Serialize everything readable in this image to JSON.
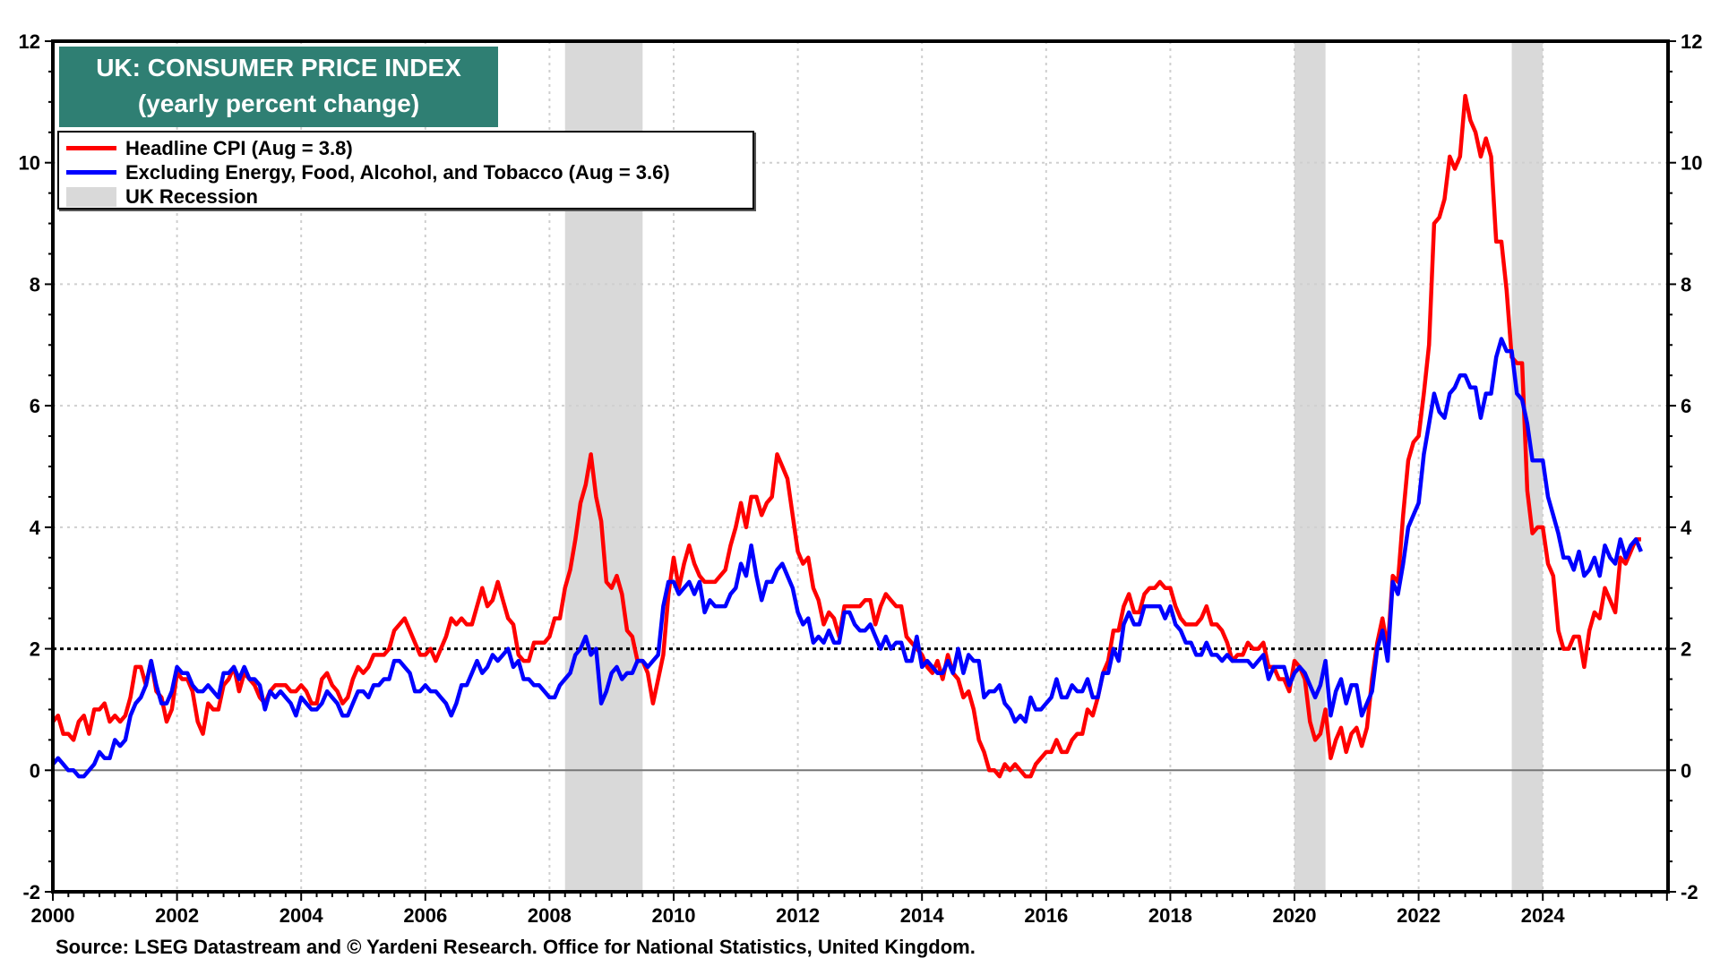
{
  "chart_data": {
    "type": "line",
    "title": "UK: CONSUMER PRICE INDEX",
    "subtitle": "(yearly percent change)",
    "xlabel": "",
    "ylabel": "",
    "x_start": "2000-01",
    "x_frequency": "monthly",
    "xlim": [
      2000,
      2026.2
    ],
    "ylim": [
      -2,
      12
    ],
    "y_ticks": [
      -2,
      0,
      2,
      4,
      6,
      8,
      10,
      12
    ],
    "y_tick_labels": [
      "-2",
      "0",
      "2",
      "4",
      "6",
      "8",
      "10",
      "12"
    ],
    "x_ticks": [
      2000,
      2002,
      2004,
      2006,
      2008,
      2010,
      2012,
      2014,
      2016,
      2018,
      2020,
      2022,
      2024
    ],
    "x_tick_labels": [
      "2000",
      "2002",
      "2004",
      "2006",
      "2008",
      "2010",
      "2012",
      "2014",
      "2016",
      "2018",
      "2020",
      "2022",
      "2024"
    ],
    "reference_lines": [
      {
        "y": 2,
        "style": "dotted",
        "color": "#000000"
      },
      {
        "y": 0,
        "style": "solid",
        "color": "#777777"
      }
    ],
    "grid": true,
    "legend_position": "top-left",
    "recessions": [
      {
        "start": 2008.25,
        "end": 2009.5
      },
      {
        "start": 2020.0,
        "end": 2020.5
      },
      {
        "start": 2023.5,
        "end": 2024.0
      }
    ],
    "series": [
      {
        "name": "Headline CPI (Aug = 3.8)",
        "color": "#ff0000",
        "values": [
          0.8,
          0.9,
          0.6,
          0.6,
          0.5,
          0.8,
          0.9,
          0.6,
          1.0,
          1.0,
          1.1,
          0.8,
          0.9,
          0.8,
          0.9,
          1.2,
          1.7,
          1.7,
          1.4,
          1.8,
          1.3,
          1.2,
          0.8,
          1.0,
          1.6,
          1.5,
          1.5,
          1.3,
          0.8,
          0.6,
          1.1,
          1.0,
          1.0,
          1.4,
          1.5,
          1.7,
          1.3,
          1.6,
          1.5,
          1.4,
          1.2,
          1.1,
          1.3,
          1.4,
          1.4,
          1.4,
          1.3,
          1.3,
          1.4,
          1.3,
          1.1,
          1.1,
          1.5,
          1.6,
          1.4,
          1.3,
          1.1,
          1.2,
          1.5,
          1.7,
          1.6,
          1.7,
          1.9,
          1.9,
          1.9,
          2.0,
          2.3,
          2.4,
          2.5,
          2.3,
          2.1,
          1.9,
          1.9,
          2.0,
          1.8,
          2.0,
          2.2,
          2.5,
          2.4,
          2.5,
          2.4,
          2.4,
          2.7,
          3.0,
          2.7,
          2.8,
          3.1,
          2.8,
          2.5,
          2.4,
          1.9,
          1.8,
          1.8,
          2.1,
          2.1,
          2.1,
          2.2,
          2.5,
          2.5,
          3.0,
          3.3,
          3.8,
          4.4,
          4.7,
          5.2,
          4.5,
          4.1,
          3.1,
          3.0,
          3.2,
          2.9,
          2.3,
          2.2,
          1.8,
          1.8,
          1.6,
          1.1,
          1.5,
          1.9,
          2.9,
          3.5,
          3.0,
          3.4,
          3.7,
          3.4,
          3.2,
          3.1,
          3.1,
          3.1,
          3.2,
          3.3,
          3.7,
          4.0,
          4.4,
          4.0,
          4.5,
          4.5,
          4.2,
          4.4,
          4.5,
          5.2,
          5.0,
          4.8,
          4.2,
          3.6,
          3.4,
          3.5,
          3.0,
          2.8,
          2.4,
          2.6,
          2.5,
          2.2,
          2.7,
          2.7,
          2.7,
          2.7,
          2.8,
          2.8,
          2.4,
          2.7,
          2.9,
          2.8,
          2.7,
          2.7,
          2.2,
          2.1,
          2.0,
          1.9,
          1.7,
          1.6,
          1.8,
          1.5,
          1.9,
          1.6,
          1.5,
          1.2,
          1.3,
          1.0,
          0.5,
          0.3,
          0.0,
          0.0,
          -0.1,
          0.1,
          0.0,
          0.1,
          0.0,
          -0.1,
          -0.1,
          0.1,
          0.2,
          0.3,
          0.3,
          0.5,
          0.3,
          0.3,
          0.5,
          0.6,
          0.6,
          1.0,
          0.9,
          1.2,
          1.6,
          1.8,
          2.3,
          2.3,
          2.7,
          2.9,
          2.6,
          2.6,
          2.9,
          3.0,
          3.0,
          3.1,
          3.0,
          3.0,
          2.7,
          2.5,
          2.4,
          2.4,
          2.4,
          2.5,
          2.7,
          2.4,
          2.4,
          2.3,
          2.1,
          1.8,
          1.9,
          1.9,
          2.1,
          2.0,
          2.0,
          2.1,
          1.7,
          1.7,
          1.5,
          1.5,
          1.3,
          1.8,
          1.7,
          1.5,
          0.8,
          0.5,
          0.6,
          1.0,
          0.2,
          0.5,
          0.7,
          0.3,
          0.6,
          0.7,
          0.4,
          0.7,
          1.5,
          2.1,
          2.5,
          2.0,
          3.2,
          3.1,
          4.2,
          5.1,
          5.4,
          5.5,
          6.2,
          7.0,
          9.0,
          9.1,
          9.4,
          10.1,
          9.9,
          10.1,
          11.1,
          10.7,
          10.5,
          10.1,
          10.4,
          10.1,
          8.7,
          8.7,
          7.9,
          6.8,
          6.7,
          6.7,
          4.6,
          3.9,
          4.0,
          4.0,
          3.4,
          3.2,
          2.3,
          2.0,
          2.0,
          2.2,
          2.2,
          1.7,
          2.3,
          2.6,
          2.5,
          3.0,
          2.8,
          2.6,
          3.5,
          3.4,
          3.6,
          3.8,
          3.8
        ]
      },
      {
        "name": "Excluding Energy, Food, Alcohol, and Tobacco (Aug = 3.6)",
        "color": "#0000ff",
        "values": [
          0.1,
          0.2,
          0.1,
          0.0,
          0.0,
          -0.1,
          -0.1,
          0.0,
          0.1,
          0.3,
          0.2,
          0.2,
          0.5,
          0.4,
          0.5,
          0.9,
          1.1,
          1.2,
          1.4,
          1.8,
          1.4,
          1.1,
          1.1,
          1.3,
          1.7,
          1.6,
          1.6,
          1.4,
          1.3,
          1.3,
          1.4,
          1.3,
          1.2,
          1.6,
          1.6,
          1.7,
          1.5,
          1.7,
          1.5,
          1.5,
          1.4,
          1.0,
          1.3,
          1.2,
          1.3,
          1.2,
          1.1,
          0.9,
          1.2,
          1.1,
          1.0,
          1.0,
          1.1,
          1.3,
          1.2,
          1.1,
          0.9,
          0.9,
          1.1,
          1.3,
          1.3,
          1.2,
          1.4,
          1.4,
          1.5,
          1.5,
          1.8,
          1.8,
          1.7,
          1.6,
          1.3,
          1.3,
          1.4,
          1.3,
          1.3,
          1.2,
          1.1,
          0.9,
          1.1,
          1.4,
          1.4,
          1.6,
          1.8,
          1.6,
          1.7,
          1.9,
          1.8,
          1.9,
          2.0,
          1.7,
          1.8,
          1.5,
          1.5,
          1.4,
          1.4,
          1.3,
          1.2,
          1.2,
          1.4,
          1.5,
          1.6,
          1.9,
          2.0,
          2.2,
          1.9,
          2.0,
          1.1,
          1.3,
          1.6,
          1.7,
          1.5,
          1.6,
          1.6,
          1.8,
          1.8,
          1.7,
          1.8,
          1.9,
          2.7,
          3.1,
          3.1,
          2.9,
          3.0,
          3.1,
          2.9,
          3.1,
          2.6,
          2.8,
          2.7,
          2.7,
          2.7,
          2.9,
          3.0,
          3.4,
          3.2,
          3.7,
          3.2,
          2.8,
          3.1,
          3.1,
          3.3,
          3.4,
          3.2,
          3.0,
          2.6,
          2.4,
          2.5,
          2.1,
          2.2,
          2.1,
          2.3,
          2.1,
          2.1,
          2.6,
          2.6,
          2.4,
          2.3,
          2.3,
          2.4,
          2.2,
          2.0,
          2.2,
          2.0,
          2.1,
          2.1,
          1.8,
          1.8,
          2.2,
          1.7,
          1.8,
          1.7,
          1.6,
          1.6,
          1.8,
          1.6,
          2.0,
          1.6,
          1.9,
          1.8,
          1.8,
          1.2,
          1.3,
          1.3,
          1.4,
          1.1,
          1.0,
          0.8,
          0.9,
          0.8,
          1.2,
          1.0,
          1.0,
          1.1,
          1.2,
          1.5,
          1.2,
          1.2,
          1.4,
          1.3,
          1.3,
          1.5,
          1.2,
          1.2,
          1.6,
          1.6,
          2.0,
          1.8,
          2.4,
          2.6,
          2.4,
          2.4,
          2.7,
          2.7,
          2.7,
          2.7,
          2.5,
          2.7,
          2.4,
          2.3,
          2.1,
          2.1,
          1.9,
          1.9,
          2.1,
          1.9,
          1.9,
          1.8,
          1.9,
          1.8,
          1.8,
          1.8,
          1.8,
          1.7,
          1.8,
          1.9,
          1.5,
          1.7,
          1.7,
          1.7,
          1.4,
          1.6,
          1.7,
          1.6,
          1.4,
          1.2,
          1.4,
          1.8,
          0.9,
          1.3,
          1.5,
          1.1,
          1.4,
          1.4,
          0.9,
          1.1,
          1.3,
          2.0,
          2.3,
          1.8,
          3.1,
          2.9,
          3.4,
          4.0,
          4.2,
          4.4,
          5.2,
          5.7,
          6.2,
          5.9,
          5.8,
          6.2,
          6.3,
          6.5,
          6.5,
          6.3,
          6.3,
          5.8,
          6.2,
          6.2,
          6.8,
          7.1,
          6.9,
          6.9,
          6.2,
          6.1,
          5.7,
          5.1,
          5.1,
          5.1,
          4.5,
          4.2,
          3.9,
          3.5,
          3.5,
          3.3,
          3.6,
          3.2,
          3.3,
          3.5,
          3.2,
          3.7,
          3.5,
          3.4,
          3.8,
          3.5,
          3.7,
          3.8,
          3.6
        ]
      }
    ]
  },
  "legend": {
    "items": [
      {
        "label": "Headline CPI (Aug = 3.8)",
        "color": "#ff0000",
        "kind": "line"
      },
      {
        "label": "Excluding Energy, Food, Alcohol, and Tobacco (Aug = 3.6)",
        "color": "#0000ff",
        "kind": "line"
      },
      {
        "label": "UK Recession",
        "color": "#d9d9d9",
        "kind": "box"
      }
    ]
  },
  "title_box": {
    "line1": "UK: CONSUMER PRICE INDEX",
    "line2": "(yearly percent change)",
    "background": "#2f7f73"
  },
  "source": "Source: LSEG Datastream and © Yardeni Research. Office for National Statistics, United Kingdom."
}
